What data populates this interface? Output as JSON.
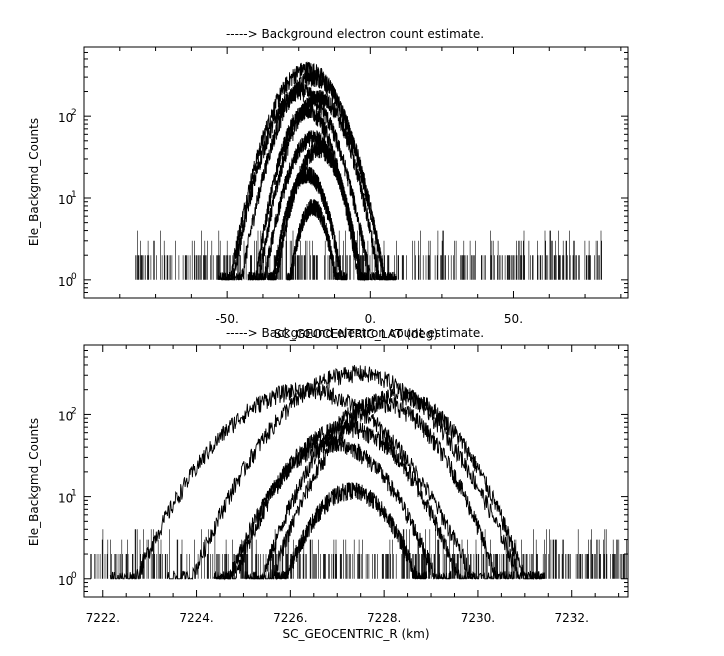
{
  "chart_data": [
    {
      "type": "line",
      "title": "-----> Background electron count estimate.",
      "xlabel": "SC_GEOCENTRIC_LAT (deg)",
      "ylabel": "Ele_Backgmd_Counts",
      "xlim": [
        -100,
        90
      ],
      "ylim": [
        0.6,
        700
      ],
      "yscale": "log",
      "x_ticks": [
        -50,
        0,
        50
      ],
      "x_tick_labels": [
        "-50.",
        "0.",
        "50."
      ],
      "y_ticks": [
        1,
        10,
        100
      ],
      "y_tick_labels": [
        "10",
        "10",
        "10"
      ],
      "y_tick_exponents": [
        "0",
        "1",
        "2"
      ],
      "grid": false,
      "noise_floor": {
        "x_range": [
          -82,
          82
        ],
        "levels": [
          1,
          2,
          3,
          4
        ]
      },
      "series": [
        {
          "peak_x": -22,
          "peak_y": 380,
          "half_width": 27
        },
        {
          "peak_x": -20,
          "peak_y": 300,
          "half_width": 25
        },
        {
          "peak_x": -24,
          "peak_y": 200,
          "half_width": 24
        },
        {
          "peak_x": -18,
          "peak_y": 170,
          "half_width": 21
        },
        {
          "peak_x": -22,
          "peak_y": 120,
          "half_width": 18
        },
        {
          "peak_x": -20,
          "peak_y": 55,
          "half_width": 17
        },
        {
          "peak_x": -18,
          "peak_y": 40,
          "half_width": 15
        },
        {
          "peak_x": -22,
          "peak_y": 20,
          "half_width": 12
        },
        {
          "peak_x": -20,
          "peak_y": 8,
          "half_width": 8
        }
      ]
    },
    {
      "type": "line",
      "title": "-----> Background electron count estimate.",
      "xlabel": "SC_GEOCENTRIC_R (km)",
      "ylabel": "Ele_Backgmd_Counts",
      "xlim": [
        7221.6,
        7233.2
      ],
      "ylim": [
        0.6,
        700
      ],
      "yscale": "log",
      "x_ticks": [
        7222,
        7224,
        7226,
        7228,
        7230,
        7232
      ],
      "x_tick_labels": [
        "7222.",
        "7224.",
        "7226.",
        "7228.",
        "7230.",
        "7232."
      ],
      "y_ticks": [
        1,
        10,
        100
      ],
      "y_tick_labels": [
        "10",
        "10",
        "10"
      ],
      "y_tick_exponents": [
        "0",
        "1",
        "2"
      ],
      "grid": false,
      "noise_floor": {
        "x_range": [
          7221.6,
          7233.2
        ],
        "levels": [
          1,
          2,
          3,
          4
        ]
      },
      "series": [
        {
          "peak_x": 7227.4,
          "peak_y": 320,
          "half_width": 3.5
        },
        {
          "peak_x": 7226.3,
          "peak_y": 200,
          "half_width": 3.6
        },
        {
          "peak_x": 7228.3,
          "peak_y": 170,
          "half_width": 2.7
        },
        {
          "peak_x": 7227.9,
          "peak_y": 140,
          "half_width": 2.5
        },
        {
          "peak_x": 7227.2,
          "peak_y": 70,
          "half_width": 2.4
        },
        {
          "peak_x": 7226.9,
          "peak_y": 45,
          "half_width": 2.2
        },
        {
          "peak_x": 7227.3,
          "peak_y": 12,
          "half_width": 1.4
        }
      ]
    }
  ]
}
